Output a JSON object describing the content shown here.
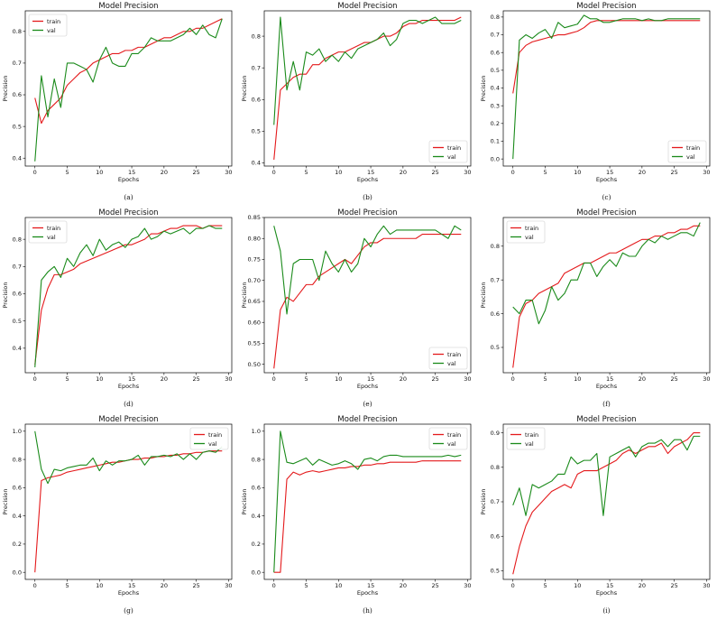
{
  "colors": {
    "train": "#e41a1c",
    "val": "#1a8a1a"
  },
  "chart_data": [
    {
      "type": "line",
      "caption": "(a)",
      "title": "Model Precision",
      "xlabel": "Epochs",
      "ylabel": "Precision",
      "xlim": [
        -1.5,
        30.5
      ],
      "ylim": [
        0.375,
        0.865
      ],
      "xticks": [
        0,
        5,
        10,
        15,
        20,
        25,
        30
      ],
      "yticks": [
        0.4,
        0.5,
        0.6,
        0.7,
        0.8
      ],
      "legend": "top-left",
      "series": [
        {
          "name": "train",
          "values": [
            0.59,
            0.51,
            0.55,
            0.57,
            0.59,
            0.63,
            0.65,
            0.67,
            0.68,
            0.7,
            0.71,
            0.72,
            0.73,
            0.73,
            0.74,
            0.74,
            0.75,
            0.75,
            0.76,
            0.77,
            0.78,
            0.78,
            0.79,
            0.8,
            0.8,
            0.81,
            0.81,
            0.82,
            0.83,
            0.84
          ]
        },
        {
          "name": "val",
          "values": [
            0.39,
            0.66,
            0.53,
            0.65,
            0.56,
            0.7,
            0.7,
            0.69,
            0.68,
            0.64,
            0.71,
            0.75,
            0.7,
            0.69,
            0.69,
            0.73,
            0.73,
            0.75,
            0.78,
            0.77,
            0.77,
            0.77,
            0.78,
            0.79,
            0.81,
            0.79,
            0.82,
            0.79,
            0.78,
            0.84
          ]
        }
      ]
    },
    {
      "type": "line",
      "caption": "(b)",
      "title": "Model Precision",
      "xlabel": "Epochs",
      "ylabel": "Precision",
      "xlim": [
        -1.5,
        30.5
      ],
      "ylim": [
        0.39,
        0.88
      ],
      "xticks": [
        0,
        5,
        10,
        15,
        20,
        25,
        30
      ],
      "yticks": [
        0.4,
        0.5,
        0.6,
        0.7,
        0.8
      ],
      "legend": "bottom-right",
      "series": [
        {
          "name": "train",
          "values": [
            0.41,
            0.63,
            0.65,
            0.67,
            0.68,
            0.68,
            0.71,
            0.71,
            0.73,
            0.74,
            0.75,
            0.75,
            0.76,
            0.77,
            0.78,
            0.78,
            0.79,
            0.8,
            0.8,
            0.81,
            0.83,
            0.84,
            0.84,
            0.85,
            0.85,
            0.85,
            0.85,
            0.85,
            0.85,
            0.86
          ]
        },
        {
          "name": "val",
          "values": [
            0.52,
            0.86,
            0.63,
            0.72,
            0.63,
            0.75,
            0.74,
            0.76,
            0.72,
            0.74,
            0.72,
            0.75,
            0.73,
            0.76,
            0.77,
            0.78,
            0.79,
            0.81,
            0.77,
            0.79,
            0.84,
            0.85,
            0.85,
            0.84,
            0.85,
            0.86,
            0.84,
            0.84,
            0.84,
            0.85
          ]
        }
      ]
    },
    {
      "type": "line",
      "caption": "(c)",
      "title": "Model Precision",
      "xlabel": "Epochs",
      "ylabel": "Precision",
      "xlim": [
        -1.5,
        30.5
      ],
      "ylim": [
        -0.04,
        0.835
      ],
      "xticks": [
        0,
        5,
        10,
        15,
        20,
        25,
        30
      ],
      "yticks": [
        0.0,
        0.1,
        0.2,
        0.3,
        0.4,
        0.5,
        0.6,
        0.7,
        0.8
      ],
      "legend": "bottom-right",
      "series": [
        {
          "name": "train",
          "values": [
            0.37,
            0.6,
            0.64,
            0.66,
            0.67,
            0.68,
            0.69,
            0.7,
            0.7,
            0.71,
            0.72,
            0.74,
            0.77,
            0.78,
            0.78,
            0.78,
            0.78,
            0.78,
            0.78,
            0.78,
            0.78,
            0.78,
            0.78,
            0.78,
            0.78,
            0.78,
            0.78,
            0.78,
            0.78,
            0.78
          ]
        },
        {
          "name": "val",
          "values": [
            0.0,
            0.67,
            0.7,
            0.68,
            0.71,
            0.73,
            0.68,
            0.77,
            0.74,
            0.75,
            0.76,
            0.81,
            0.79,
            0.79,
            0.77,
            0.77,
            0.78,
            0.79,
            0.79,
            0.79,
            0.78,
            0.79,
            0.78,
            0.78,
            0.79,
            0.79,
            0.79,
            0.79,
            0.79,
            0.79
          ]
        }
      ]
    },
    {
      "type": "line",
      "caption": "(d)",
      "title": "Model Precision",
      "xlabel": "Epochs",
      "ylabel": "Precision",
      "xlim": [
        -1.5,
        30.5
      ],
      "ylim": [
        0.31,
        0.88
      ],
      "xticks": [
        0,
        5,
        10,
        15,
        20,
        25,
        30
      ],
      "yticks": [
        0.4,
        0.5,
        0.6,
        0.7,
        0.8
      ],
      "legend": "top-left",
      "series": [
        {
          "name": "train",
          "values": [
            0.34,
            0.54,
            0.62,
            0.67,
            0.67,
            0.68,
            0.69,
            0.71,
            0.72,
            0.73,
            0.74,
            0.75,
            0.76,
            0.77,
            0.78,
            0.78,
            0.79,
            0.8,
            0.82,
            0.82,
            0.83,
            0.84,
            0.84,
            0.85,
            0.85,
            0.85,
            0.84,
            0.85,
            0.85,
            0.85
          ]
        },
        {
          "name": "val",
          "values": [
            0.33,
            0.65,
            0.68,
            0.7,
            0.66,
            0.73,
            0.7,
            0.75,
            0.78,
            0.74,
            0.8,
            0.76,
            0.78,
            0.79,
            0.77,
            0.8,
            0.81,
            0.84,
            0.8,
            0.81,
            0.83,
            0.82,
            0.83,
            0.84,
            0.82,
            0.84,
            0.84,
            0.85,
            0.84,
            0.84
          ]
        }
      ]
    },
    {
      "type": "line",
      "caption": "(e)",
      "title": "Model Precision",
      "xlabel": "Epochs",
      "ylabel": "Precision",
      "xlim": [
        -1.5,
        30.5
      ],
      "ylim": [
        0.48,
        0.85
      ],
      "xticks": [
        0,
        5,
        10,
        15,
        20,
        25,
        30
      ],
      "yticks": [
        0.5,
        0.55,
        0.6,
        0.65,
        0.7,
        0.75,
        0.8,
        0.85
      ],
      "legend": "bottom-right",
      "series": [
        {
          "name": "train",
          "values": [
            0.49,
            0.63,
            0.66,
            0.65,
            0.67,
            0.69,
            0.69,
            0.71,
            0.72,
            0.73,
            0.74,
            0.75,
            0.74,
            0.76,
            0.78,
            0.79,
            0.79,
            0.8,
            0.8,
            0.8,
            0.8,
            0.8,
            0.8,
            0.81,
            0.81,
            0.81,
            0.81,
            0.81,
            0.81,
            0.81
          ]
        },
        {
          "name": "val",
          "values": [
            0.83,
            0.77,
            0.62,
            0.74,
            0.75,
            0.75,
            0.75,
            0.7,
            0.77,
            0.74,
            0.72,
            0.75,
            0.72,
            0.74,
            0.8,
            0.78,
            0.81,
            0.83,
            0.81,
            0.82,
            0.82,
            0.82,
            0.82,
            0.82,
            0.82,
            0.82,
            0.81,
            0.8,
            0.83,
            0.82
          ]
        }
      ]
    },
    {
      "type": "line",
      "caption": "(f)",
      "title": "Model Precision",
      "xlabel": "Epochs",
      "ylabel": "Precision",
      "xlim": [
        -1.5,
        30.5
      ],
      "ylim": [
        0.425,
        0.885
      ],
      "xticks": [
        0,
        5,
        10,
        15,
        20,
        25,
        30
      ],
      "yticks": [
        0.5,
        0.6,
        0.7,
        0.8
      ],
      "legend": "top-left",
      "series": [
        {
          "name": "train",
          "values": [
            0.44,
            0.59,
            0.63,
            0.64,
            0.66,
            0.67,
            0.68,
            0.69,
            0.72,
            0.73,
            0.74,
            0.75,
            0.75,
            0.76,
            0.77,
            0.78,
            0.78,
            0.79,
            0.8,
            0.81,
            0.82,
            0.82,
            0.83,
            0.83,
            0.84,
            0.84,
            0.85,
            0.85,
            0.86,
            0.86
          ]
        },
        {
          "name": "val",
          "values": [
            0.62,
            0.6,
            0.64,
            0.64,
            0.57,
            0.61,
            0.68,
            0.64,
            0.66,
            0.7,
            0.7,
            0.75,
            0.75,
            0.71,
            0.74,
            0.76,
            0.74,
            0.78,
            0.77,
            0.77,
            0.8,
            0.82,
            0.81,
            0.83,
            0.82,
            0.83,
            0.84,
            0.84,
            0.83,
            0.87
          ]
        }
      ]
    },
    {
      "type": "line",
      "caption": "(g)",
      "title": "Model Precision",
      "xlabel": "Epochs",
      "ylabel": "Precision",
      "xlim": [
        -1.5,
        30.5
      ],
      "ylim": [
        -0.05,
        1.05
      ],
      "xticks": [
        0,
        5,
        10,
        15,
        20,
        25,
        30
      ],
      "yticks": [
        0.0,
        0.2,
        0.4,
        0.6,
        0.8,
        1.0
      ],
      "legend": "top-right",
      "series": [
        {
          "name": "train",
          "values": [
            0.0,
            0.65,
            0.67,
            0.68,
            0.69,
            0.71,
            0.72,
            0.73,
            0.74,
            0.75,
            0.76,
            0.77,
            0.78,
            0.78,
            0.79,
            0.8,
            0.8,
            0.81,
            0.81,
            0.82,
            0.82,
            0.83,
            0.83,
            0.84,
            0.84,
            0.85,
            0.85,
            0.86,
            0.86,
            0.86
          ]
        },
        {
          "name": "val",
          "values": [
            1.0,
            0.73,
            0.63,
            0.73,
            0.72,
            0.74,
            0.75,
            0.76,
            0.76,
            0.81,
            0.72,
            0.79,
            0.76,
            0.79,
            0.79,
            0.8,
            0.83,
            0.76,
            0.82,
            0.82,
            0.83,
            0.82,
            0.84,
            0.8,
            0.84,
            0.8,
            0.85,
            0.86,
            0.85,
            0.89
          ]
        }
      ]
    },
    {
      "type": "line",
      "caption": "(h)",
      "title": "Model Precision",
      "xlabel": "Epochs",
      "ylabel": "Precision",
      "xlim": [
        -1.5,
        30.5
      ],
      "ylim": [
        -0.05,
        1.05
      ],
      "xticks": [
        0,
        5,
        10,
        15,
        20,
        25,
        30
      ],
      "yticks": [
        0.0,
        0.2,
        0.4,
        0.6,
        0.8,
        1.0
      ],
      "legend": "top-right",
      "series": [
        {
          "name": "train",
          "values": [
            0.0,
            0.0,
            0.66,
            0.71,
            0.69,
            0.71,
            0.72,
            0.71,
            0.72,
            0.73,
            0.74,
            0.74,
            0.75,
            0.75,
            0.76,
            0.76,
            0.77,
            0.77,
            0.78,
            0.78,
            0.78,
            0.78,
            0.78,
            0.79,
            0.79,
            0.79,
            0.79,
            0.79,
            0.79,
            0.79
          ]
        },
        {
          "name": "val",
          "values": [
            0.0,
            1.0,
            0.78,
            0.77,
            0.79,
            0.81,
            0.76,
            0.8,
            0.78,
            0.76,
            0.77,
            0.79,
            0.77,
            0.73,
            0.8,
            0.81,
            0.79,
            0.82,
            0.83,
            0.83,
            0.82,
            0.82,
            0.82,
            0.82,
            0.82,
            0.82,
            0.82,
            0.83,
            0.82,
            0.83
          ]
        }
      ]
    },
    {
      "type": "line",
      "caption": "(i)",
      "title": "Model Precision",
      "xlabel": "Epochs",
      "ylabel": "Precision",
      "xlim": [
        -1.5,
        30.5
      ],
      "ylim": [
        0.475,
        0.925
      ],
      "xticks": [
        0,
        5,
        10,
        15,
        20,
        25,
        30
      ],
      "yticks": [
        0.5,
        0.6,
        0.7,
        0.8,
        0.9
      ],
      "legend": "top-left",
      "series": [
        {
          "name": "train",
          "values": [
            0.49,
            0.57,
            0.63,
            0.67,
            0.69,
            0.71,
            0.73,
            0.74,
            0.75,
            0.74,
            0.78,
            0.79,
            0.79,
            0.79,
            0.8,
            0.81,
            0.82,
            0.84,
            0.85,
            0.84,
            0.85,
            0.86,
            0.86,
            0.87,
            0.84,
            0.86,
            0.87,
            0.88,
            0.9,
            0.9
          ]
        },
        {
          "name": "val",
          "values": [
            0.69,
            0.74,
            0.66,
            0.75,
            0.74,
            0.75,
            0.76,
            0.78,
            0.78,
            0.83,
            0.81,
            0.82,
            0.82,
            0.84,
            0.66,
            0.83,
            0.84,
            0.85,
            0.86,
            0.83,
            0.86,
            0.87,
            0.87,
            0.88,
            0.86,
            0.88,
            0.88,
            0.85,
            0.89,
            0.89
          ]
        }
      ]
    }
  ]
}
